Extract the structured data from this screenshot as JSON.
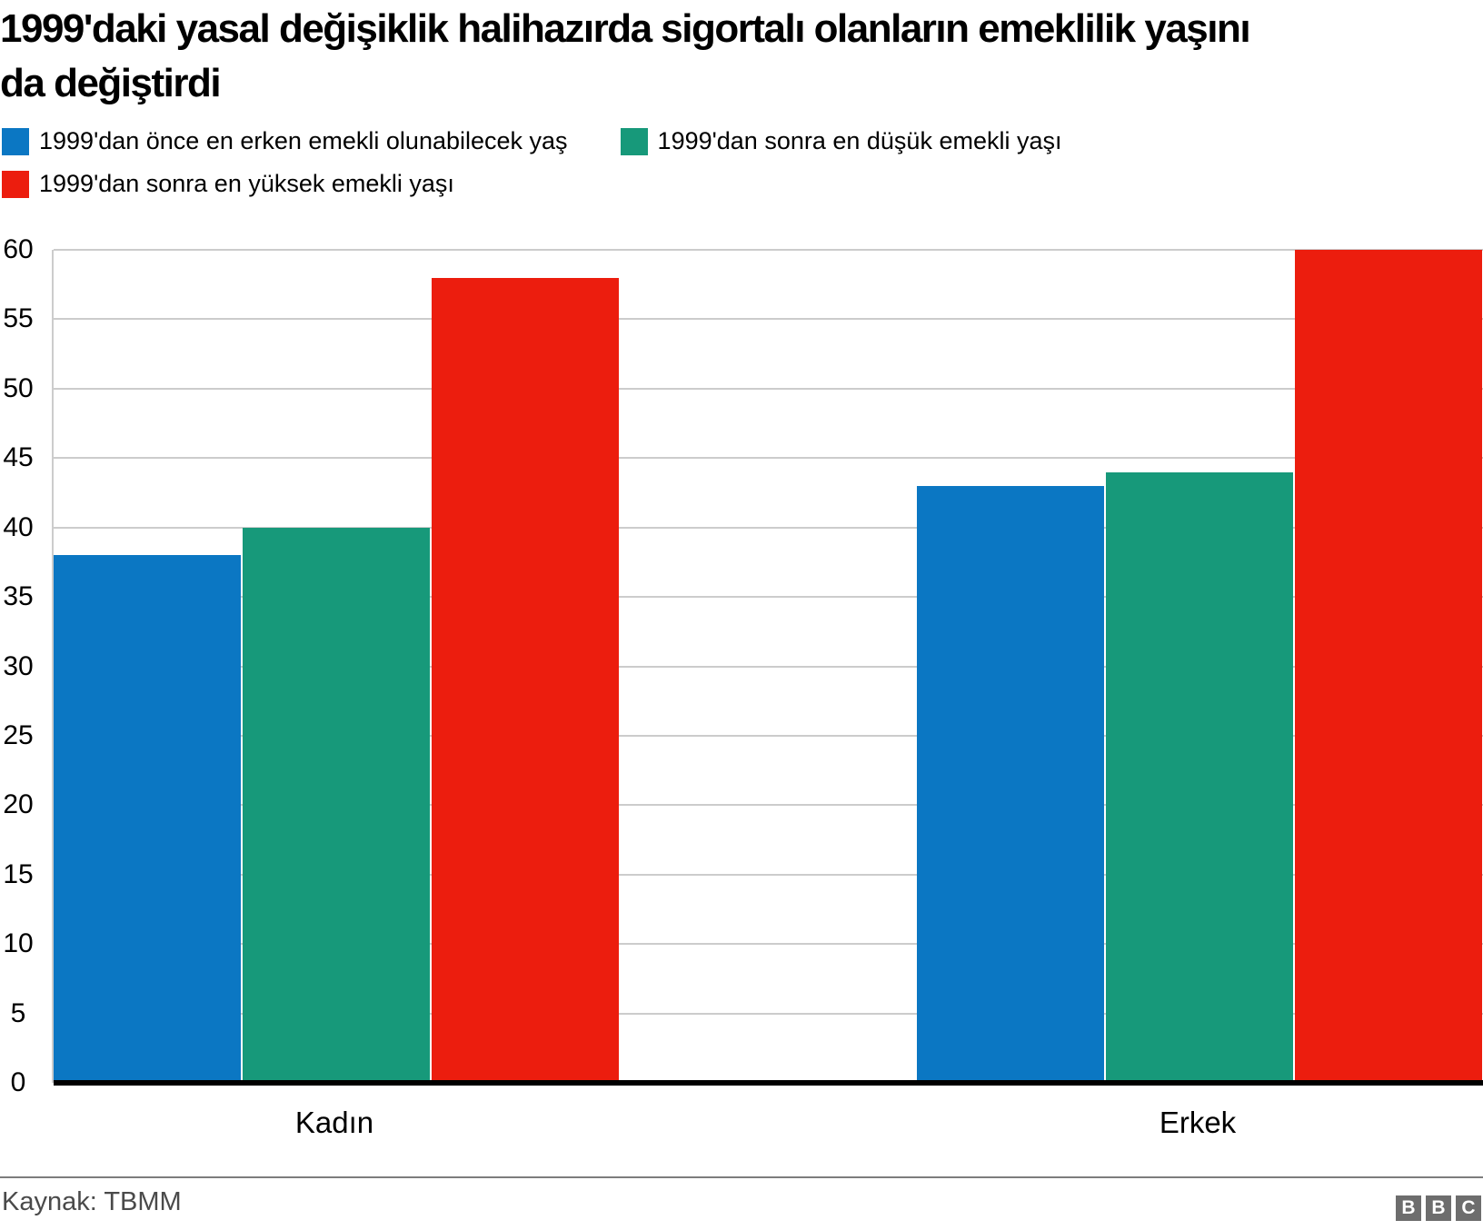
{
  "title": "1999'daki yasal değişiklik halihazırda sigortalı olanların emeklilik yaşını\nda değiştirdi",
  "chart_data": {
    "type": "bar",
    "title": "1999'daki yasal değişiklik halihazırda sigortalı olanların emeklilik yaşını da değiştirdi",
    "categories": [
      "Kadın",
      "Erkek"
    ],
    "series": [
      {
        "name": "1999'dan önce en erken emekli olunabilecek yaş",
        "color": "#0b77c3",
        "values": [
          38,
          43
        ]
      },
      {
        "name": "1999'dan sonra en düşük emekli yaşı",
        "color": "#17997a",
        "values": [
          40,
          44
        ]
      },
      {
        "name": "1999'dan sonra en yüksek emekli yaşı",
        "color": "#ec1d0e",
        "values": [
          58,
          60
        ]
      }
    ],
    "xlabel": "",
    "ylabel": "",
    "ylim": [
      0,
      60
    ],
    "yticks": [
      0,
      5,
      10,
      15,
      20,
      25,
      30,
      35,
      40,
      45,
      50,
      55,
      60
    ],
    "grid": true,
    "legend_position": "top-left"
  },
  "footer": {
    "source": "Kaynak: TBMM",
    "logo_letters": [
      "B",
      "B",
      "C"
    ]
  },
  "colors": {
    "grid": "#cccccc",
    "axis": "#000000",
    "separator": "#7d7d7d",
    "logo_bg": "#6d6d6d",
    "source_text": "#4a4a4a"
  }
}
